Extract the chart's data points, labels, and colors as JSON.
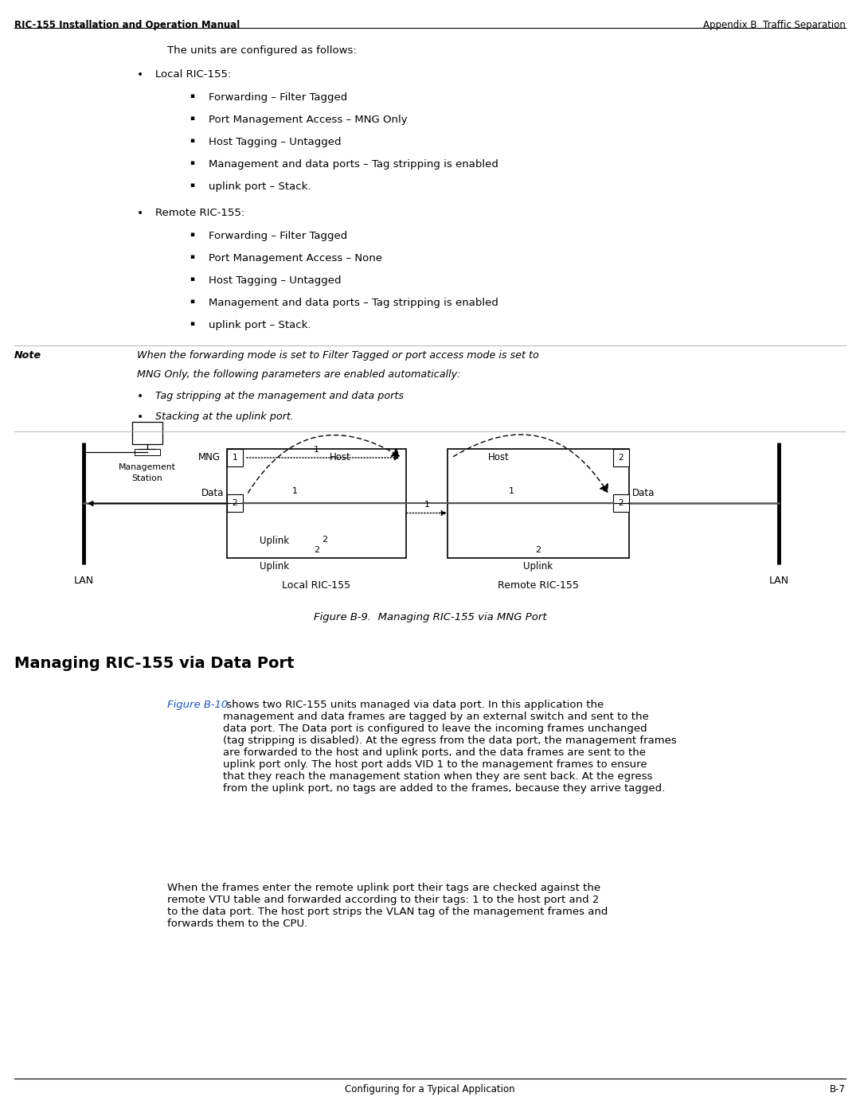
{
  "header_left": "RIC-155 Installation and Operation Manual",
  "header_right": "Appendix B  Traffic Separation",
  "footer_center": "Configuring for a Typical Application",
  "footer_right": "B-7",
  "intro_text": "The units are configured as follows:",
  "local_title": "Local RIC-155:",
  "local_bullets": [
    "Forwarding – Filter Tagged",
    "Port Management Access – MNG Only",
    "Host Tagging – Untagged",
    "Management and data ports – Tag stripping is enabled",
    "uplink port – Stack."
  ],
  "remote_title": "Remote RIC-155:",
  "remote_bullets": [
    "Forwarding – Filter Tagged",
    "Port Management Access – None",
    "Host Tagging – Untagged",
    "Management and data ports – Tag stripping is enabled",
    "uplink port – Stack."
  ],
  "note_label": "Note",
  "note_text": "When the forwarding mode is set to Filter Tagged or port access mode is set to\nMNG Only, the following parameters are enabled automatically:",
  "note_bullets": [
    "Tag stripping at the management and data ports",
    "Stacking at the uplink port."
  ],
  "figure_caption": "Figure B-9.  Managing RIC-155 via MNG Port",
  "section_title": "Managing RIC-155 via Data Port",
  "para1_link": "Figure B-10",
  "para1_text": " shows two RIC-155 units managed via data port. In this application the\nmanagement and data frames are tagged by an external switch and sent to the\ndata port. The Data port is configured to leave the incoming frames unchanged\n(tag stripping is disabled). At the egress from the data port, the management frames\nare forwarded to the host and uplink ports, and the data frames are sent to the\nuplink port only. The host port adds VID 1 to the management frames to ensure\nthat they reach the management station when they are sent back. At the egress\nfrom the uplink port, no tags are added to the frames, because they arrive tagged.",
  "para2_text": "When the frames enter the remote uplink port their tags are checked against the\nremote VTU table and forwarded according to their tags: 1 to the host port and 2\nto the data port. The host port strips the VLAN tag of the management frames and\nforwards them to the CPU.",
  "bg_color": "#ffffff",
  "text_color": "#000000",
  "link_color": "#1155CC",
  "header_line_color": "#000000",
  "box_color": "#000000",
  "diagram_line_color": "#000000"
}
